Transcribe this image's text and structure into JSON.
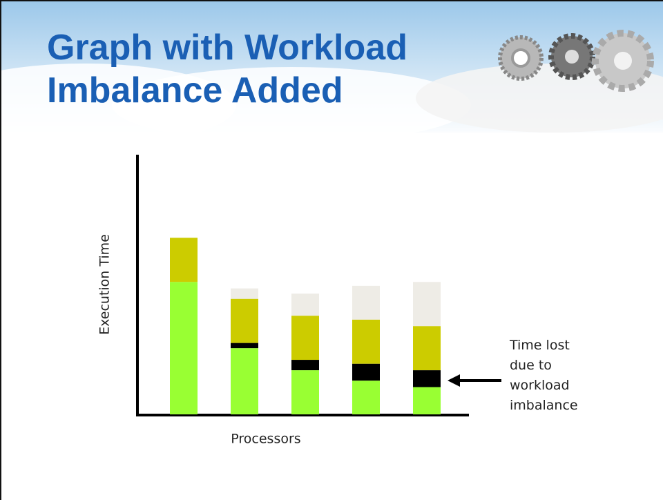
{
  "chart_data": {
    "type": "stacked_bar",
    "title": "Graph with Workload Imbalance Added",
    "y_label": "Execution Time",
    "x_label": "Processors",
    "annotation": "Time lost due to workload imbalance",
    "categories": [
      null,
      null,
      null,
      null,
      null
    ],
    "ylim": [
      0,
      100
    ],
    "series": [
      {
        "color": "#99ff33",
        "values": [
          51,
          25.5,
          17,
          13,
          10.5
        ]
      },
      {
        "color": "#000000",
        "values": [
          0,
          2,
          4,
          6.5,
          6.5
        ]
      },
      {
        "color": "#cccc00",
        "values": [
          17,
          17,
          17,
          17,
          17
        ]
      },
      {
        "color": "#eeece6",
        "values": [
          0,
          4,
          8.5,
          13,
          17
        ]
      }
    ]
  }
}
